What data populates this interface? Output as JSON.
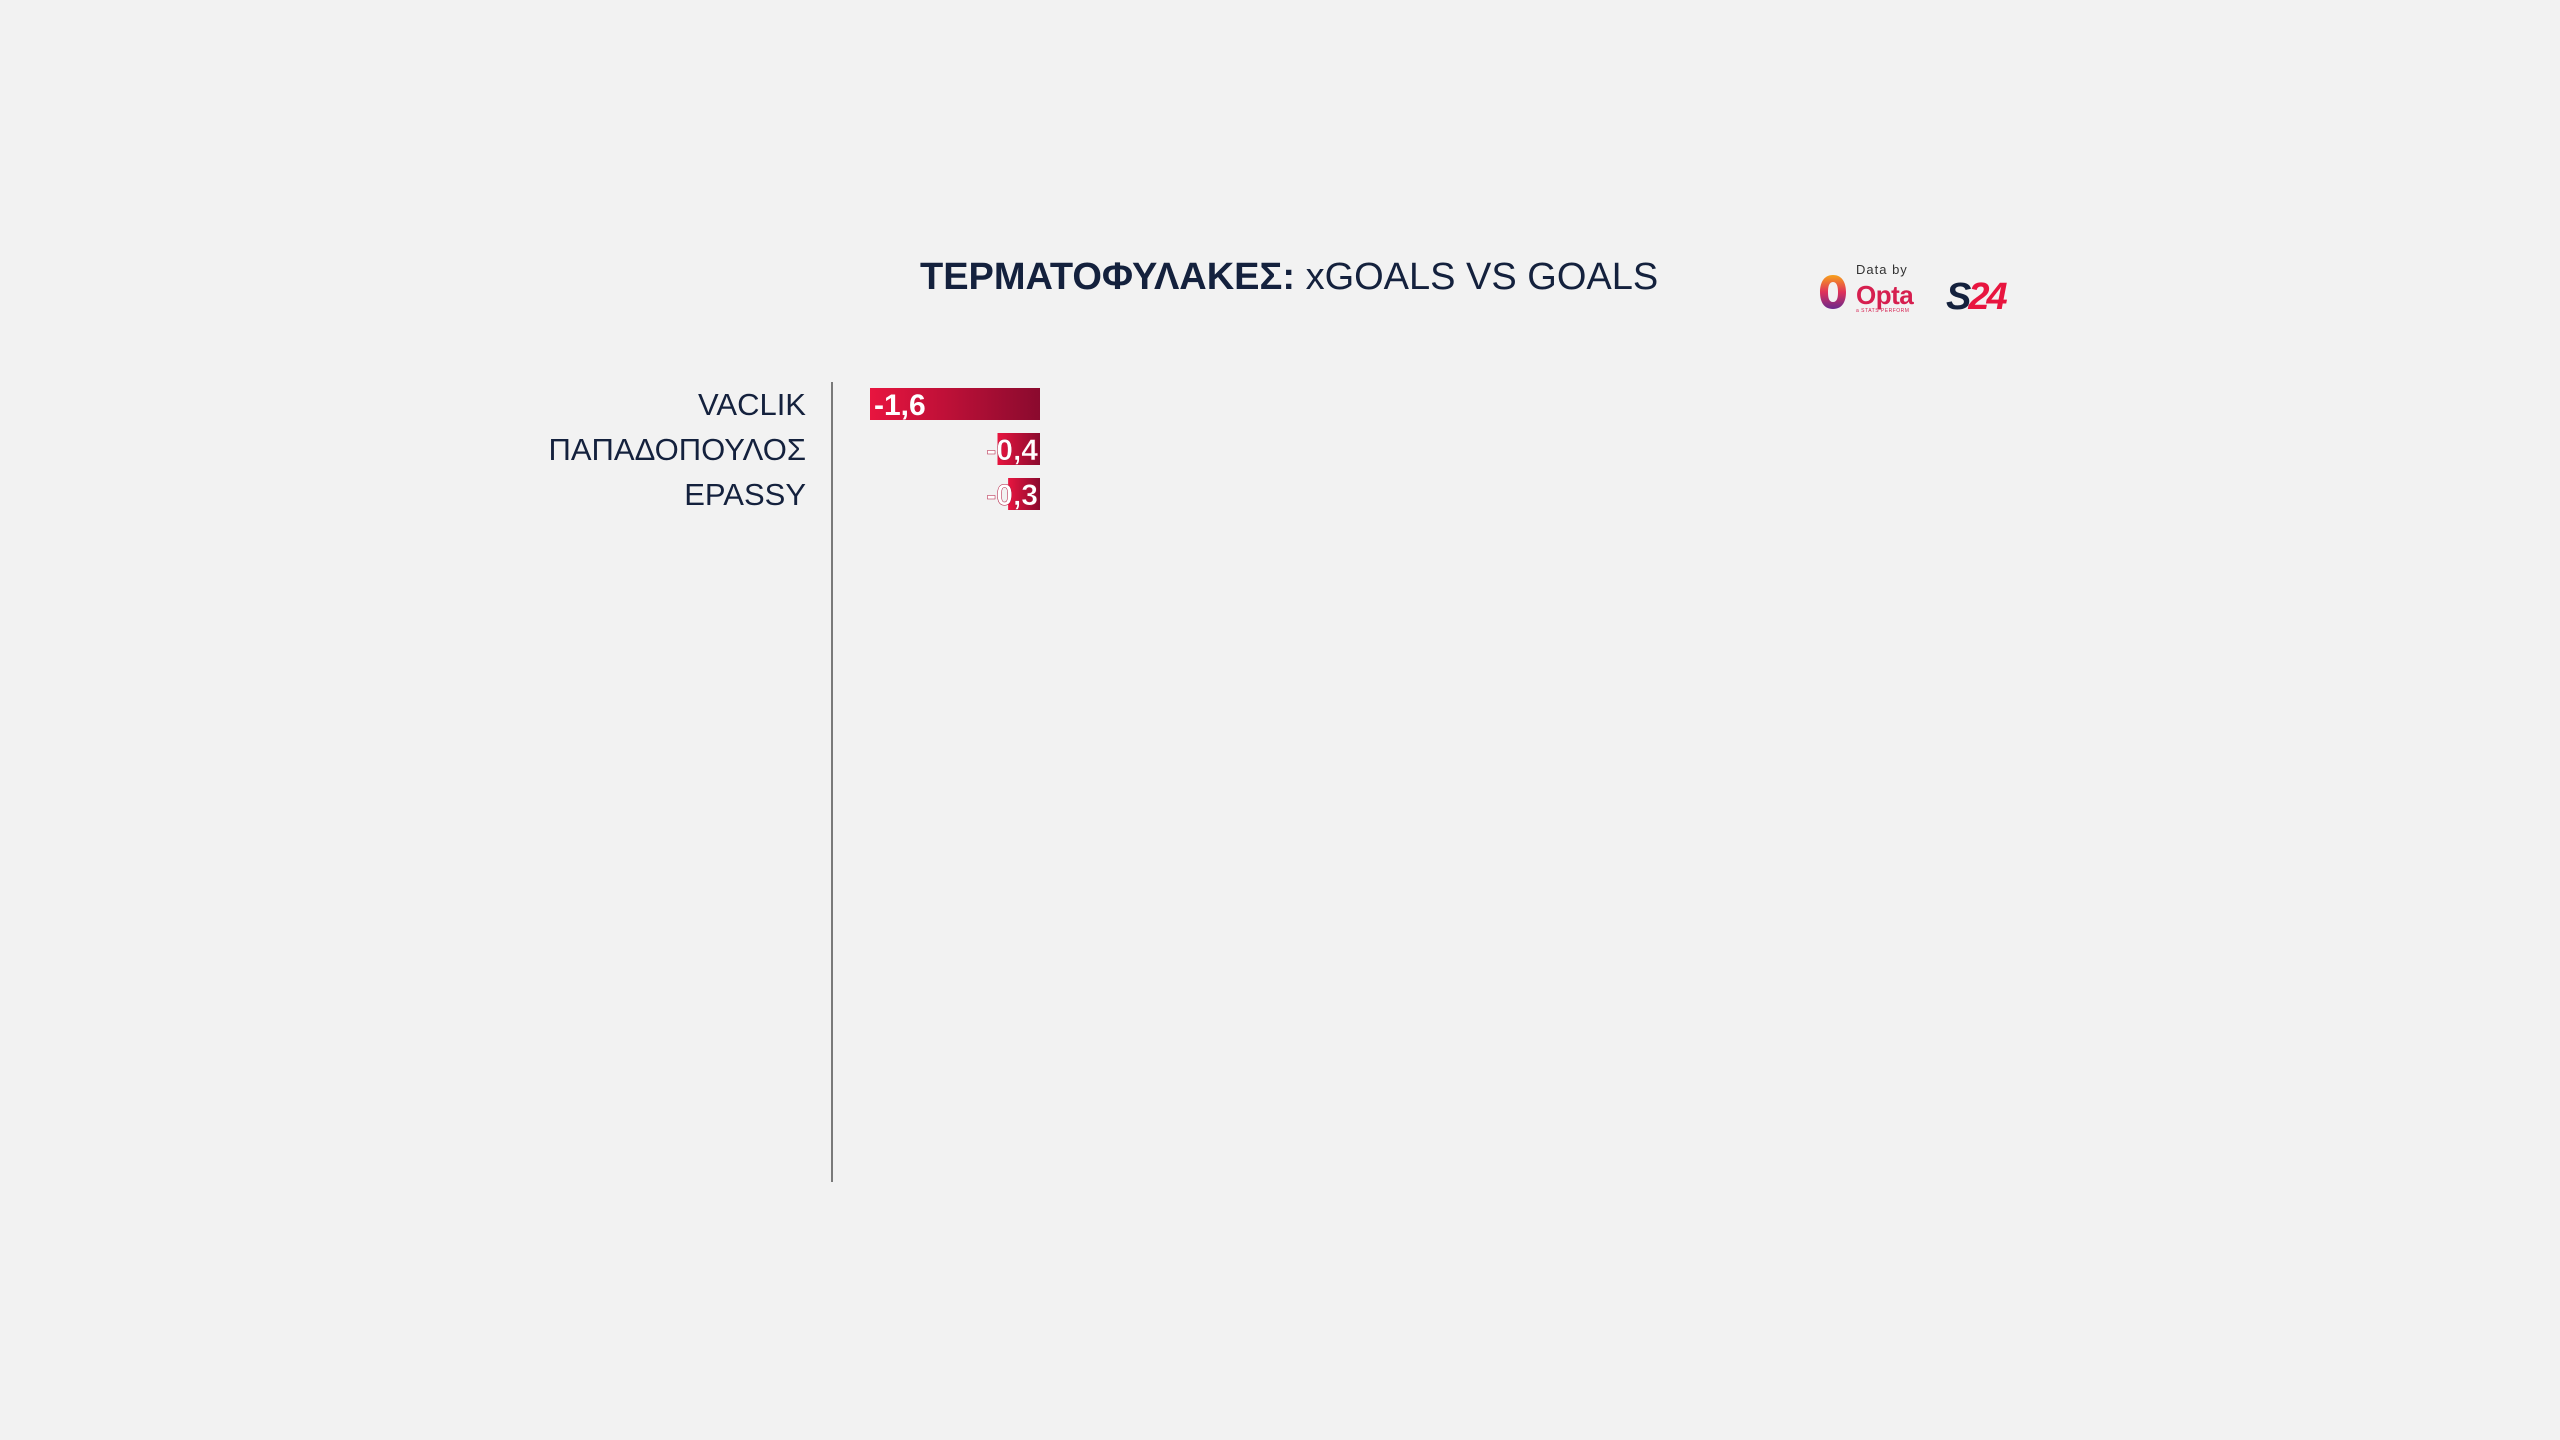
{
  "title": {
    "bold_part": "ΤΕΡΜΑΤΟΦΥΛΑΚΕΣ:",
    "regular_part": "xGOALS VS GOALS"
  },
  "logos": {
    "data_by": "Data by",
    "opta": "Opta",
    "opta_sub": "a STATS PERFORM",
    "s24_s": "S",
    "s24_num": "24"
  },
  "colors": {
    "background": "#f2f2f2",
    "title": "#14213d",
    "bar_light": "#e8153f",
    "bar_dark": "#8a0a2e",
    "axis": "#7a7a7a"
  },
  "chart_data": {
    "type": "bar",
    "orientation": "horizontal",
    "categories": [
      "VACLIK",
      "ΠΑΠΑΔΟΠΟΥΛΟΣ",
      "EPASSY"
    ],
    "values": [
      -1.6,
      -0.4,
      -0.3
    ],
    "value_labels": [
      "-1,6",
      "-0,4",
      "-0,3"
    ],
    "xlim": [
      -1.6,
      0
    ]
  }
}
